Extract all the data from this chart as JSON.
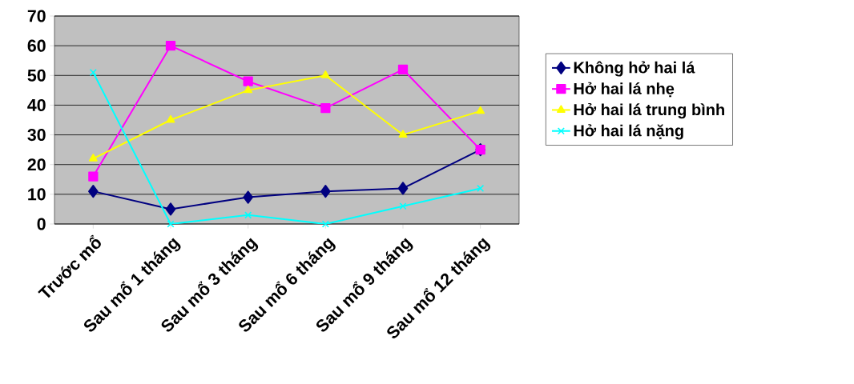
{
  "chart_data": {
    "type": "line",
    "categories": [
      "Trước mổ",
      "Sau mổ 1 tháng",
      "Sau mổ 3 tháng",
      "Sau mổ 6 tháng",
      "Sau mổ 9 tháng",
      "Sau mổ 12 tháng"
    ],
    "series": [
      {
        "name": "Không hở hai lá",
        "color": "#000080",
        "marker": "diamond",
        "values": [
          11,
          5,
          9,
          11,
          12,
          25
        ]
      },
      {
        "name": "Hở hai lá nhẹ",
        "color": "#ff00ff",
        "marker": "square",
        "values": [
          16,
          60,
          48,
          39,
          52,
          25
        ]
      },
      {
        "name": "Hở hai lá trung bình",
        "color": "#ffff00",
        "marker": "triangle",
        "values": [
          22,
          35,
          45,
          50,
          30,
          38
        ]
      },
      {
        "name": "Hở hai lá nặng",
        "color": "#00ffff",
        "marker": "cross",
        "values": [
          51,
          0,
          3,
          0,
          6,
          12
        ]
      }
    ],
    "ylim": [
      0,
      70
    ],
    "yticks": [
      0,
      10,
      20,
      30,
      40,
      50,
      60,
      70
    ],
    "grid": "y",
    "legend": "right"
  }
}
